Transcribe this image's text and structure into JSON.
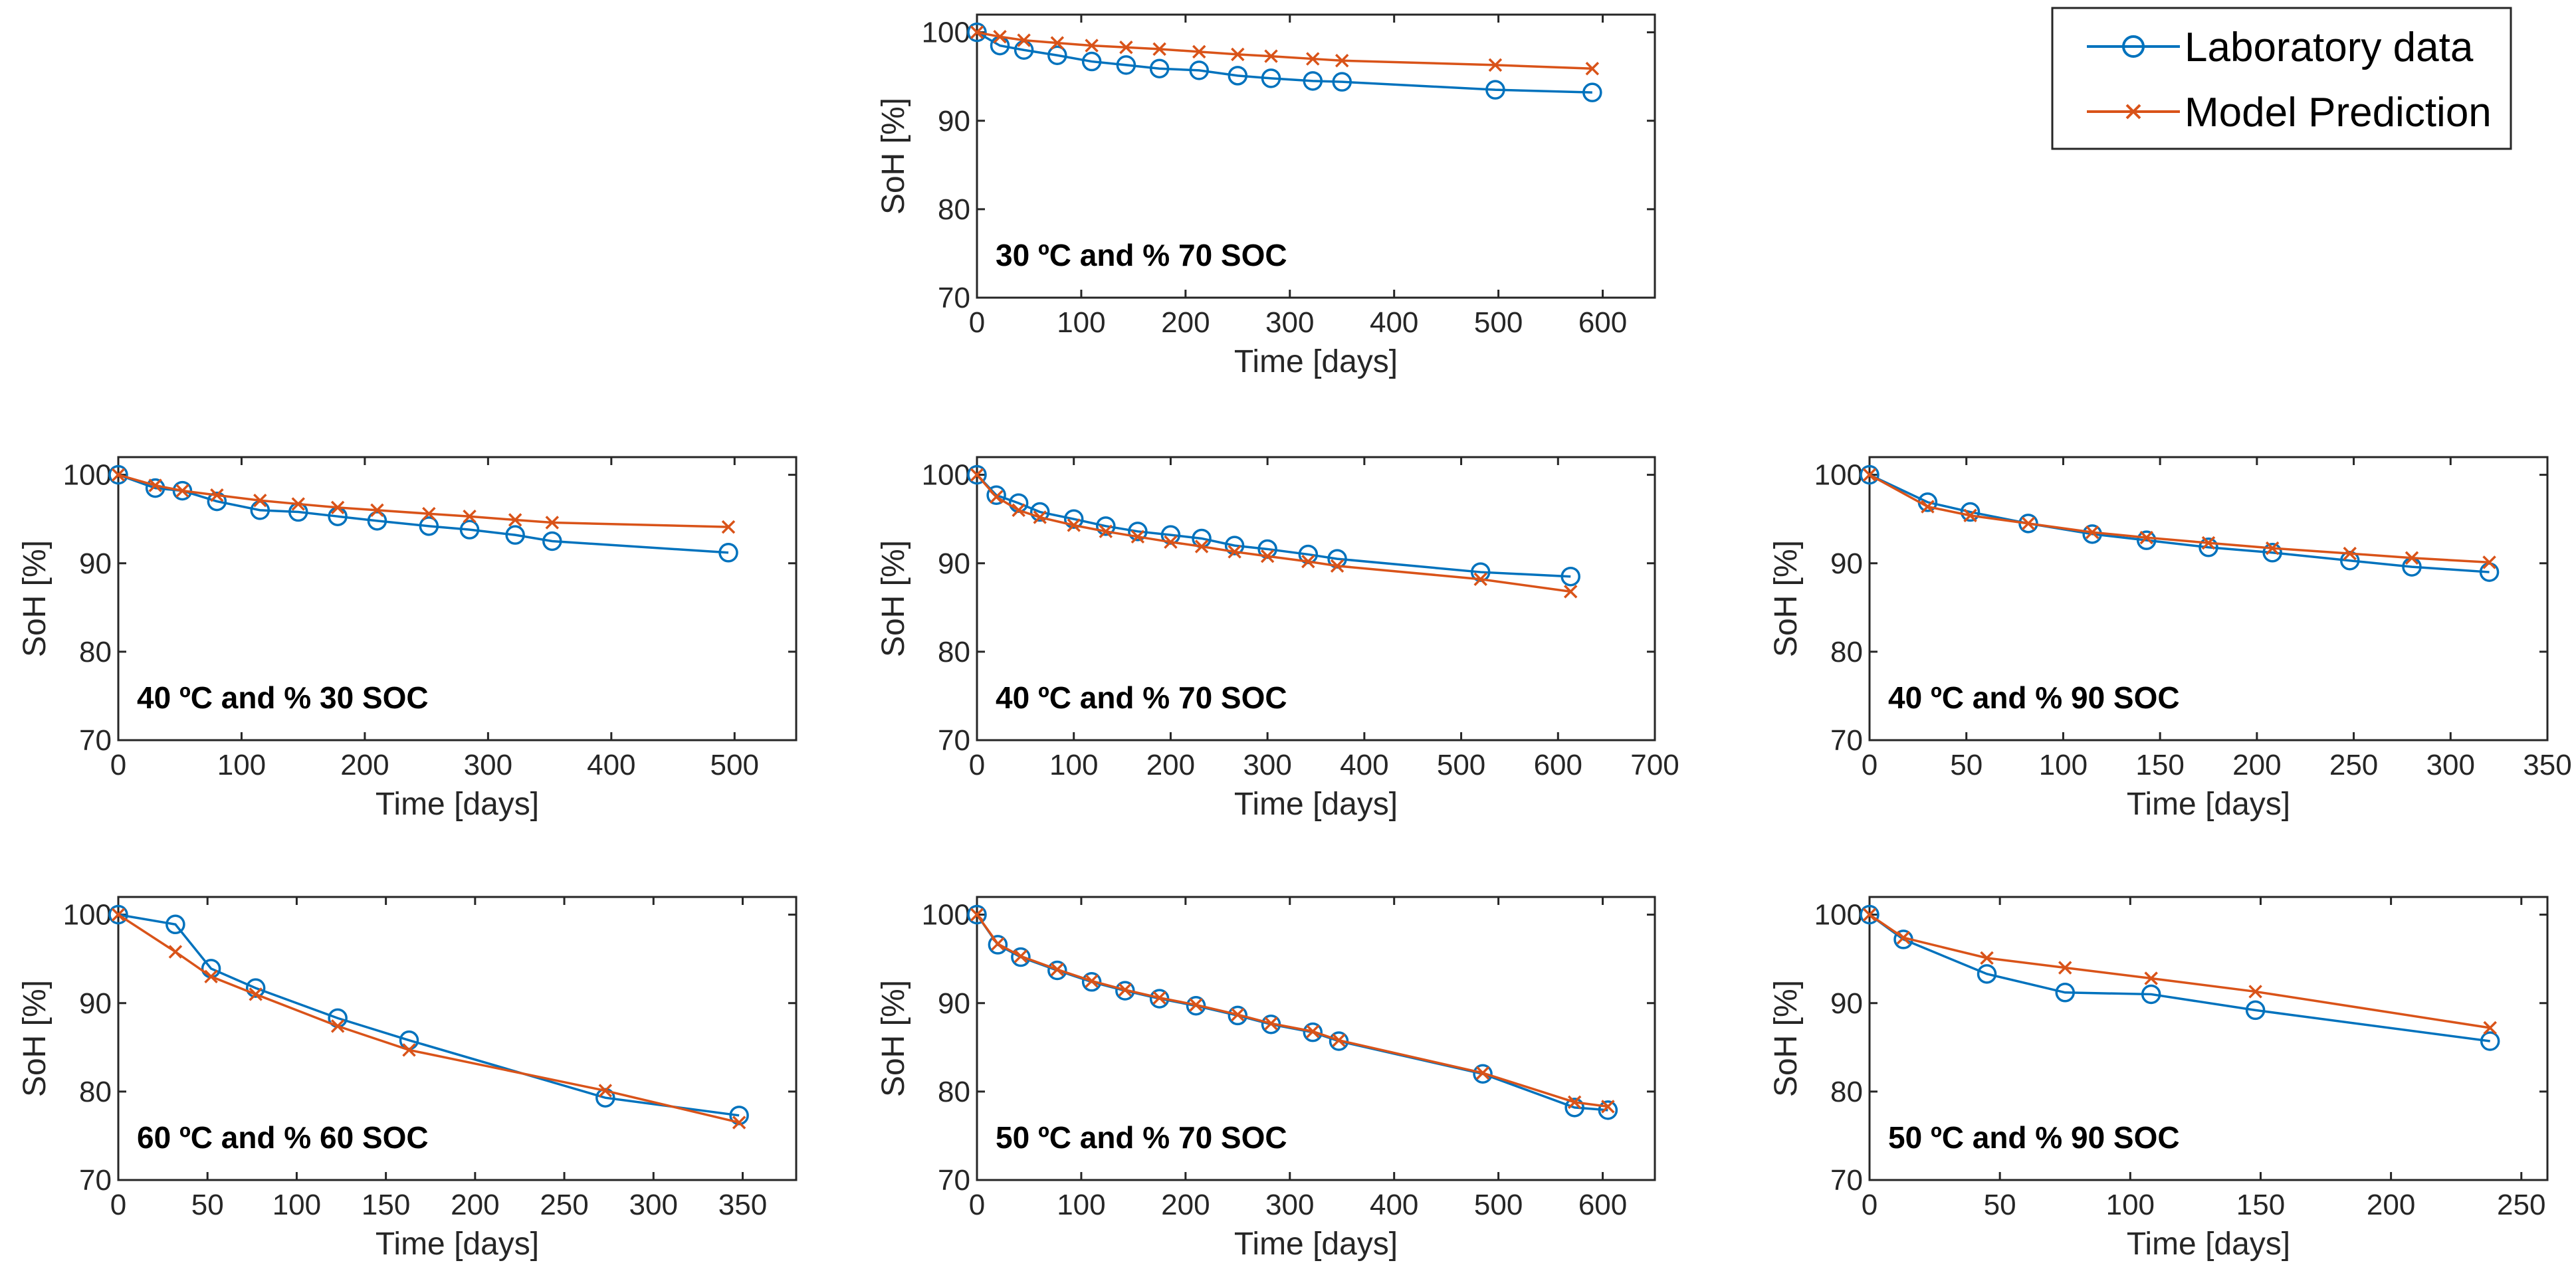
{
  "legend": {
    "entries": [
      {
        "label": "Laboratory data",
        "color": "#0072BD",
        "marker": "circle"
      },
      {
        "label": "Model Prediction",
        "color": "#D95319",
        "marker": "x"
      }
    ]
  },
  "chart_data": [
    {
      "type": "line",
      "annotation": "30 ºC and % 70 SOC",
      "xlabel": "Time [days]",
      "ylabel": "SoH [%]",
      "xlim": [
        0,
        650
      ],
      "ylim": [
        70,
        102
      ],
      "xticks": [
        0,
        100,
        200,
        300,
        400,
        500,
        600
      ],
      "yticks": [
        70,
        80,
        90,
        100
      ],
      "series": [
        {
          "name": "Laboratory data",
          "x": [
            0,
            22,
            45,
            77,
            110,
            143,
            175,
            213,
            250,
            282,
            322,
            350,
            497,
            590
          ],
          "y": [
            100,
            98.5,
            98,
            97.4,
            96.7,
            96.3,
            95.9,
            95.7,
            95.1,
            94.8,
            94.5,
            94.4,
            93.5,
            93.2
          ]
        },
        {
          "name": "Model Prediction",
          "x": [
            0,
            22,
            45,
            77,
            110,
            143,
            175,
            213,
            250,
            282,
            322,
            350,
            497,
            590
          ],
          "y": [
            100,
            99.5,
            99.1,
            98.8,
            98.5,
            98.3,
            98.1,
            97.8,
            97.5,
            97.3,
            97,
            96.8,
            96.3,
            95.9
          ]
        }
      ]
    },
    {
      "type": "line",
      "annotation": "40 ºC and % 30 SOC",
      "xlabel": "Time [days]",
      "ylabel": "SoH [%]",
      "xlim": [
        0,
        550
      ],
      "ylim": [
        70,
        102
      ],
      "xticks": [
        0,
        100,
        200,
        300,
        400,
        500
      ],
      "yticks": [
        70,
        80,
        90,
        100
      ],
      "series": [
        {
          "name": "Laboratory data",
          "x": [
            0,
            30,
            52,
            80,
            115,
            146,
            178,
            210,
            252,
            285,
            322,
            352,
            495
          ],
          "y": [
            100,
            98.5,
            98.2,
            97,
            96,
            95.8,
            95.3,
            94.8,
            94.2,
            93.8,
            93.2,
            92.5,
            91.2
          ]
        },
        {
          "name": "Model Prediction",
          "x": [
            0,
            30,
            52,
            80,
            115,
            146,
            178,
            210,
            252,
            285,
            322,
            352,
            495
          ],
          "y": [
            100,
            98.8,
            98.2,
            97.7,
            97.1,
            96.7,
            96.3,
            96,
            95.6,
            95.3,
            94.9,
            94.6,
            94.1
          ]
        }
      ]
    },
    {
      "type": "line",
      "annotation": "40 ºC and % 70 SOC",
      "xlabel": "Time [days]",
      "ylabel": "SoH [%]",
      "xlim": [
        0,
        700
      ],
      "ylim": [
        70,
        102
      ],
      "xticks": [
        0,
        100,
        200,
        300,
        400,
        500,
        600,
        700
      ],
      "yticks": [
        70,
        80,
        90,
        100
      ],
      "series": [
        {
          "name": "Laboratory data",
          "x": [
            0,
            20,
            43,
            65,
            100,
            133,
            166,
            200,
            232,
            266,
            300,
            342,
            372,
            520,
            613
          ],
          "y": [
            100,
            97.7,
            96.8,
            95.8,
            95,
            94.2,
            93.6,
            93.2,
            92.8,
            92,
            91.6,
            91,
            90.5,
            89,
            88.5
          ]
        },
        {
          "name": "Model Prediction",
          "x": [
            0,
            20,
            43,
            65,
            100,
            133,
            166,
            200,
            232,
            266,
            300,
            342,
            372,
            520,
            613
          ],
          "y": [
            100,
            97.5,
            96,
            95.2,
            94.3,
            93.6,
            93,
            92.4,
            91.9,
            91.3,
            90.8,
            90.2,
            89.7,
            88.2,
            86.8
          ]
        }
      ]
    },
    {
      "type": "line",
      "annotation": "40 ºC and % 90 SOC",
      "xlabel": "Time [days]",
      "ylabel": "SoH [%]",
      "xlim": [
        0,
        350
      ],
      "ylim": [
        70,
        102
      ],
      "xticks": [
        0,
        50,
        100,
        150,
        200,
        250,
        300,
        350
      ],
      "yticks": [
        70,
        80,
        90,
        100
      ],
      "series": [
        {
          "name": "Laboratory data",
          "x": [
            0,
            30,
            52,
            82,
            115,
            143,
            175,
            208,
            248,
            280,
            320
          ],
          "y": [
            100,
            96.9,
            95.8,
            94.5,
            93.3,
            92.6,
            91.8,
            91.2,
            90.3,
            89.6,
            89
          ]
        },
        {
          "name": "Model Prediction",
          "x": [
            0,
            30,
            52,
            82,
            115,
            143,
            175,
            208,
            248,
            280,
            320
          ],
          "y": [
            100,
            96.4,
            95.4,
            94.5,
            93.5,
            92.9,
            92.3,
            91.7,
            91.1,
            90.6,
            90.1
          ]
        }
      ]
    },
    {
      "type": "line",
      "annotation": "60 ºC and % 60 SOC",
      "xlabel": "Time [days]",
      "ylabel": "SoH [%]",
      "xlim": [
        0,
        380
      ],
      "ylim": [
        70,
        102
      ],
      "xticks": [
        0,
        50,
        100,
        150,
        200,
        250,
        300,
        350
      ],
      "yticks": [
        70,
        80,
        90,
        100
      ],
      "series": [
        {
          "name": "Laboratory data",
          "x": [
            0,
            32,
            52,
            77,
            123,
            163,
            273,
            348
          ],
          "y": [
            100,
            98.9,
            93.9,
            91.7,
            88.3,
            85.8,
            79.3,
            77.3
          ]
        },
        {
          "name": "Model Prediction",
          "x": [
            0,
            32,
            52,
            77,
            123,
            163,
            273,
            348
          ],
          "y": [
            100,
            95.8,
            93,
            91,
            87.4,
            84.7,
            80.1,
            76.5
          ]
        }
      ]
    },
    {
      "type": "line",
      "annotation": "50 ºC and % 70 SOC",
      "xlabel": "Time [days]",
      "ylabel": "SoH [%]",
      "xlim": [
        0,
        650
      ],
      "ylim": [
        70,
        102
      ],
      "xticks": [
        0,
        100,
        200,
        300,
        400,
        500,
        600
      ],
      "yticks": [
        70,
        80,
        90,
        100
      ],
      "series": [
        {
          "name": "Laboratory data",
          "x": [
            0,
            20,
            42,
            77,
            110,
            142,
            175,
            210,
            250,
            282,
            322,
            347,
            485,
            573,
            605
          ],
          "y": [
            100,
            96.6,
            95.2,
            93.7,
            92.4,
            91.4,
            90.5,
            89.7,
            88.6,
            87.6,
            86.7,
            85.7,
            82,
            78.2,
            77.9
          ]
        },
        {
          "name": "Model Prediction",
          "x": [
            0,
            20,
            42,
            77,
            110,
            142,
            175,
            210,
            250,
            282,
            322,
            347,
            485,
            573,
            605
          ],
          "y": [
            100,
            96.7,
            95.3,
            93.8,
            92.5,
            91.5,
            90.6,
            89.8,
            88.7,
            87.7,
            86.8,
            85.8,
            82.1,
            78.8,
            78.3
          ]
        }
      ]
    },
    {
      "type": "line",
      "annotation": "50 ºC and % 90 SOC",
      "xlabel": "Time [days]",
      "ylabel": "SoH [%]",
      "xlim": [
        0,
        260
      ],
      "ylim": [
        70,
        102
      ],
      "xticks": [
        0,
        50,
        100,
        150,
        200,
        250
      ],
      "yticks": [
        70,
        80,
        90,
        100
      ],
      "series": [
        {
          "name": "Laboratory data",
          "x": [
            0,
            13,
            45,
            75,
            108,
            148,
            238
          ],
          "y": [
            100,
            97.2,
            93.3,
            91.2,
            91,
            89.2,
            85.7
          ]
        },
        {
          "name": "Model Prediction",
          "x": [
            0,
            13,
            45,
            75,
            108,
            148,
            238
          ],
          "y": [
            100,
            97.4,
            95.1,
            94,
            92.8,
            91.3,
            87.2
          ]
        }
      ]
    }
  ]
}
